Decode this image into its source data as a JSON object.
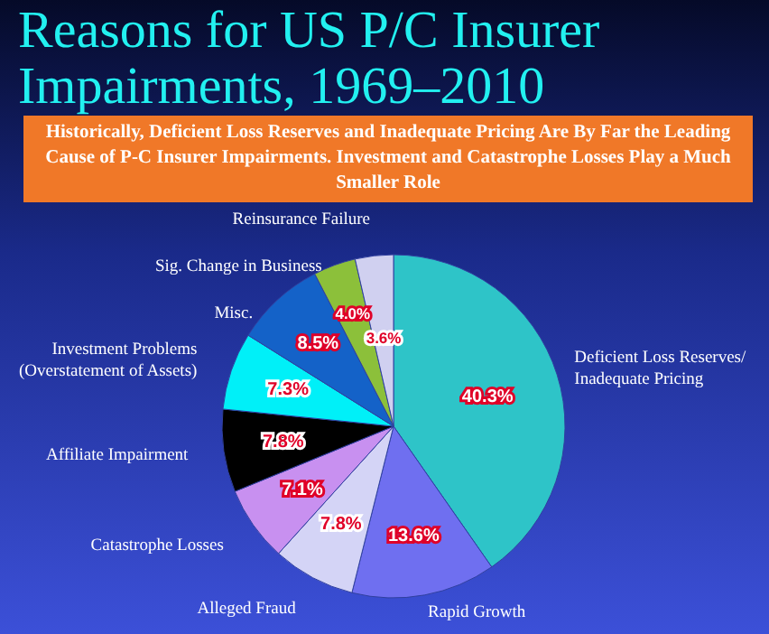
{
  "chart_data": {
    "type": "pie",
    "title": "Reasons for US P/C Insurer Impairments, 1969–2010",
    "subtitle": "Historically, Deficient Loss Reserves and Inadequate Pricing Are By Far the Leading Cause of P-C Insurer Impairments. Investment and Catastrophe Losses Play a Much Smaller Role",
    "categories": [
      "Deficient Loss Reserves/\nInadequate Pricing",
      "Rapid Growth",
      "Alleged Fraud",
      "Catastrophe Losses",
      "Affiliate Impairment",
      "Investment Problems\n(Overstatement of Assets)",
      "Misc.",
      "Sig. Change in Business",
      "Reinsurance Failure"
    ],
    "values": [
      40.3,
      13.6,
      7.8,
      7.1,
      7.8,
      7.3,
      8.5,
      4.0,
      3.6
    ],
    "value_labels": [
      "40.3%",
      "13.6%",
      "7.8%",
      "7.1%",
      "7.8%",
      "7.3%",
      "8.5%",
      "4.0%",
      "3.6%"
    ],
    "colors": [
      "#2ec4c8",
      "#6f6ff0",
      "#d4d4f6",
      "#c890f0",
      "#000000",
      "#00f0f8",
      "#1462c8",
      "#8cc03a",
      "#d0d0f0"
    ]
  }
}
